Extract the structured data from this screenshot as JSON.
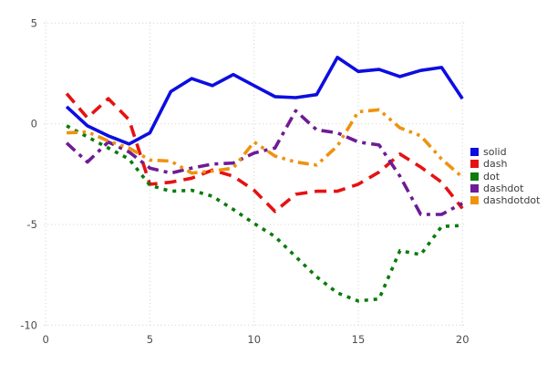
{
  "chart_data": {
    "type": "line",
    "title": "",
    "xlabel": "",
    "ylabel": "",
    "x": [
      1,
      2,
      3,
      4,
      5,
      6,
      7,
      8,
      9,
      10,
      11,
      12,
      13,
      14,
      15,
      16,
      17,
      18,
      19,
      20
    ],
    "series": [
      {
        "name": "solid",
        "color": "#0d0de0",
        "style": "solid",
        "values": [
          0.85,
          -0.1,
          -0.6,
          -1.0,
          -0.45,
          1.6,
          2.25,
          1.9,
          2.45,
          1.9,
          1.35,
          1.3,
          1.45,
          3.3,
          2.6,
          2.7,
          2.35,
          2.65,
          2.8,
          1.25
        ]
      },
      {
        "name": "dash",
        "color": "#e51212",
        "style": "dash",
        "values": [
          1.5,
          0.3,
          1.25,
          0.2,
          -3.0,
          -2.9,
          -2.7,
          -2.3,
          -2.6,
          -3.3,
          -4.35,
          -3.5,
          -3.35,
          -3.35,
          -3.0,
          -2.4,
          -1.5,
          -2.15,
          -2.9,
          -4.2
        ]
      },
      {
        "name": "dot",
        "color": "#0b7b0b",
        "style": "dot",
        "values": [
          -0.1,
          -0.65,
          -1.2,
          -1.75,
          -3.05,
          -3.35,
          -3.3,
          -3.6,
          -4.25,
          -4.95,
          -5.6,
          -6.6,
          -7.6,
          -8.4,
          -8.8,
          -8.7,
          -6.3,
          -6.5,
          -5.1,
          -5.05
        ]
      },
      {
        "name": "dashdot",
        "color": "#6e1b96",
        "style": "dashdot",
        "values": [
          -0.95,
          -1.9,
          -0.9,
          -1.4,
          -2.2,
          -2.45,
          -2.2,
          -2.0,
          -1.95,
          -1.45,
          -1.2,
          0.65,
          -0.3,
          -0.45,
          -0.9,
          -1.05,
          -2.6,
          -4.5,
          -4.5,
          -3.95
        ]
      },
      {
        "name": "dashdotdot",
        "color": "#ee930e",
        "style": "dashdotdot",
        "values": [
          -0.45,
          -0.4,
          -0.85,
          -1.2,
          -1.8,
          -1.85,
          -2.45,
          -2.35,
          -2.2,
          -0.9,
          -1.6,
          -1.9,
          -2.05,
          -1.1,
          0.6,
          0.7,
          -0.2,
          -0.6,
          -1.75,
          -2.65
        ]
      }
    ],
    "x_ticks": [
      "0",
      "5",
      "10",
      "15",
      "20"
    ],
    "x_tick_values": [
      0,
      5,
      10,
      15,
      20
    ],
    "y_ticks": [
      "5",
      "0",
      "-5",
      "-10"
    ],
    "y_tick_values": [
      5,
      0,
      -5,
      -10
    ],
    "xlim": [
      0,
      20
    ],
    "ylim": [
      -10,
      5
    ],
    "grid": true,
    "grid_color": "#cfcfcf",
    "legend_position": "right-outside"
  },
  "legend": {
    "items": [
      {
        "label": "solid",
        "color": "#0d0de0"
      },
      {
        "label": "dash",
        "color": "#e51212"
      },
      {
        "label": "dot",
        "color": "#0b7b0b"
      },
      {
        "label": "dashdot",
        "color": "#6e1b96"
      },
      {
        "label": "dashdotdot",
        "color": "#ee930e"
      }
    ]
  }
}
